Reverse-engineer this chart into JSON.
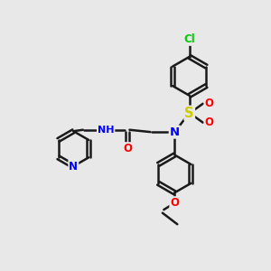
{
  "bg_color": "#e8e8e8",
  "bond_color": "#1a1a1a",
  "bond_width": 1.8,
  "atom_colors": {
    "N": "#0000ff",
    "O": "#ff0000",
    "S": "#cccc00",
    "Cl": "#00cc00",
    "H": "#888888",
    "C": "#1a1a1a"
  },
  "font_size": 8.5
}
